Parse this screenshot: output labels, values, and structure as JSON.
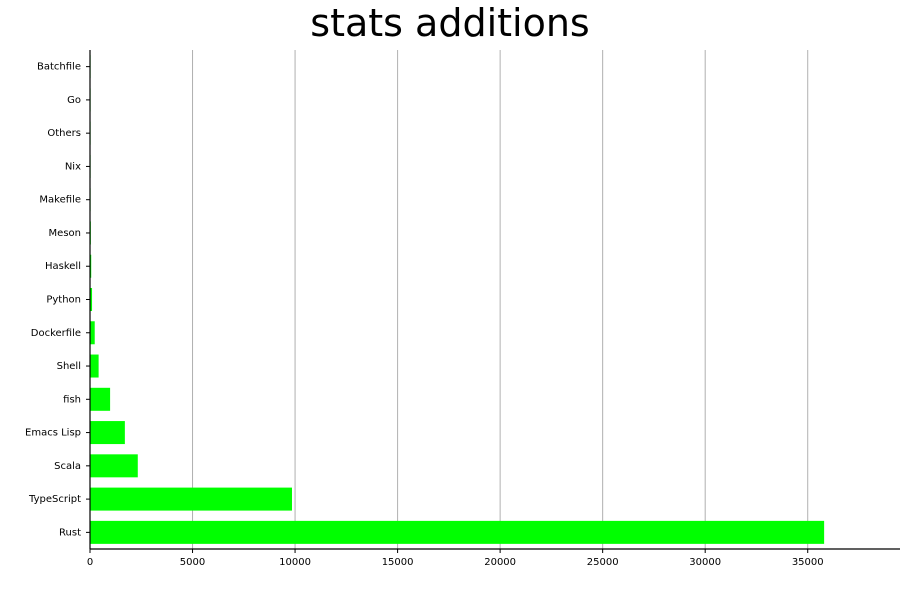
{
  "chart_data": {
    "type": "bar",
    "orientation": "horizontal",
    "title": "stats additions",
    "xlabel": "",
    "ylabel": "",
    "categories": [
      "Rust",
      "TypeScript",
      "Scala",
      "Emacs Lisp",
      "fish",
      "Shell",
      "Dockerfile",
      "Python",
      "Haskell",
      "Meson",
      "Makefile",
      "Nix",
      "Others",
      "Go",
      "Batchfile"
    ],
    "values": [
      35800,
      9850,
      2330,
      1700,
      980,
      420,
      230,
      100,
      60,
      40,
      20,
      15,
      10,
      6,
      3
    ],
    "xlim": [
      0,
      39500
    ],
    "xticks": [
      0,
      5000,
      10000,
      15000,
      20000,
      25000,
      30000,
      35000
    ],
    "grid": "vertical",
    "legend": "none",
    "bar_color": "#00ff00",
    "grid_color": "#b0b0b0"
  }
}
